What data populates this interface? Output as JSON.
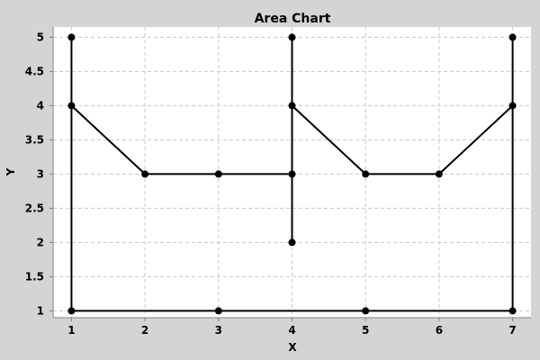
{
  "chart_data": {
    "type": "line",
    "title": "Area Chart",
    "xlabel": "X",
    "ylabel": "Y",
    "xlim": [
      0.75,
      7.25
    ],
    "ylim": [
      0.9,
      5.15
    ],
    "x_ticks": [
      1,
      2,
      3,
      4,
      5,
      6,
      7
    ],
    "y_ticks": [
      1,
      1.5,
      2,
      2.5,
      3,
      3.5,
      4,
      4.5,
      5
    ],
    "x_tick_labels": [
      "1",
      "2",
      "3",
      "4",
      "5",
      "6",
      "7"
    ],
    "y_tick_labels": [
      "1",
      "1.5",
      "2",
      "2.5",
      "3",
      "3.5",
      "4",
      "4.5",
      "5"
    ],
    "grid": true,
    "legend": false,
    "series": [
      {
        "points": [
          [
            1,
            5
          ],
          [
            1,
            4
          ],
          [
            1,
            1
          ],
          [
            3,
            1
          ],
          [
            5,
            1
          ],
          [
            7,
            1
          ],
          [
            7,
            4
          ],
          [
            7,
            5
          ],
          [
            7,
            4
          ],
          [
            6,
            3
          ],
          [
            5,
            3
          ],
          [
            4,
            4
          ],
          [
            4,
            5
          ],
          [
            4,
            4
          ],
          [
            4,
            3
          ],
          [
            4,
            2
          ],
          [
            4,
            3
          ],
          [
            3,
            3
          ],
          [
            2,
            3
          ],
          [
            1,
            4
          ]
        ]
      }
    ],
    "colors": {
      "background": "#d4d4d4",
      "plot_background": "#ffffff",
      "series": "#000000",
      "grid": "#c8c8c8"
    }
  }
}
